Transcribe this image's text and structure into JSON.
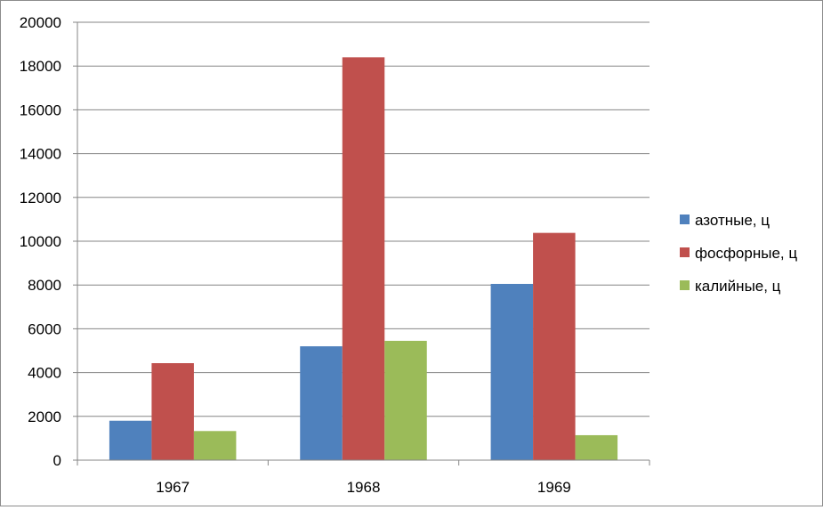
{
  "chart_data": {
    "type": "bar",
    "categories": [
      "1967",
      "1968",
      "1969"
    ],
    "series": [
      {
        "name": "азотные, ц",
        "values": [
          1800,
          5200,
          8050
        ],
        "color": "#4F81BD"
      },
      {
        "name": "фосфорные, ц",
        "values": [
          4430,
          18400,
          10380
        ],
        "color": "#C0504D"
      },
      {
        "name": "калийные, ц",
        "values": [
          1330,
          5450,
          1140
        ],
        "color": "#9BBB59"
      }
    ],
    "yticks": [
      "0",
      "2000",
      "4000",
      "6000",
      "8000",
      "10000",
      "12000",
      "14000",
      "16000",
      "18000",
      "20000"
    ],
    "ylim": [
      0,
      20000
    ],
    "title": "",
    "xlabel": "",
    "ylabel": "",
    "grid": true,
    "legend_position": "right"
  }
}
